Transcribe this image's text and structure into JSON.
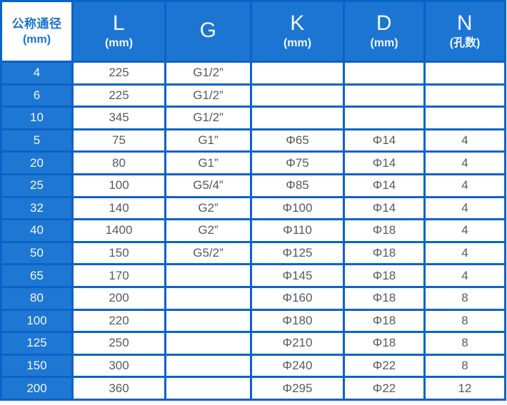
{
  "table": {
    "columns": [
      {
        "title": "公称通径",
        "subtitle": "(mm)"
      },
      {
        "title": "L",
        "subtitle": "(mm)"
      },
      {
        "title": "G",
        "subtitle": ""
      },
      {
        "title": "K",
        "subtitle": "(mm)"
      },
      {
        "title": "D",
        "subtitle": "(mm)"
      },
      {
        "title": "N",
        "subtitle": "(孔数)"
      }
    ],
    "rows": [
      [
        "4",
        "225",
        "G1/2”",
        "",
        "",
        ""
      ],
      [
        "6",
        "225",
        "G1/2”",
        "",
        "",
        ""
      ],
      [
        "10",
        "345",
        "G1/2”",
        "",
        "",
        ""
      ],
      [
        "5",
        "75",
        "G1”",
        "Φ65",
        "Φ14",
        "4"
      ],
      [
        "20",
        "80",
        "G1”",
        "Φ75",
        "Φ14",
        "4"
      ],
      [
        "25",
        "100",
        "G5/4”",
        "Φ85",
        "Φ14",
        "4"
      ],
      [
        "32",
        "140",
        "G2”",
        "Φ100",
        "Φ14",
        "4"
      ],
      [
        "40",
        "1400",
        "G2”",
        "Φ110",
        "Φ18",
        "4"
      ],
      [
        "50",
        "150",
        "G5/2”",
        "Φ125",
        "Φ18",
        "4"
      ],
      [
        "65",
        "170",
        "",
        "Φ145",
        "Φ18",
        "4"
      ],
      [
        "80",
        "200",
        "",
        "Φ160",
        "Φ18",
        "8"
      ],
      [
        "100",
        "220",
        "",
        "Φ180",
        "Φ18",
        "8"
      ],
      [
        "125",
        "250",
        "",
        "Φ210",
        "Φ18",
        "8"
      ],
      [
        "150",
        "300",
        "",
        "Φ240",
        "Φ22",
        "8"
      ],
      [
        "200",
        "360",
        "",
        "Φ295",
        "Φ22",
        "12"
      ]
    ]
  },
  "colors": {
    "header_blue": "#1c75d2",
    "row_header_blue": "#1e77d3",
    "border_blue": "#0a63c6",
    "corner_text_blue": "#1a72d0",
    "data_text_gray": "#58595b",
    "cell_white": "#ffffff"
  }
}
